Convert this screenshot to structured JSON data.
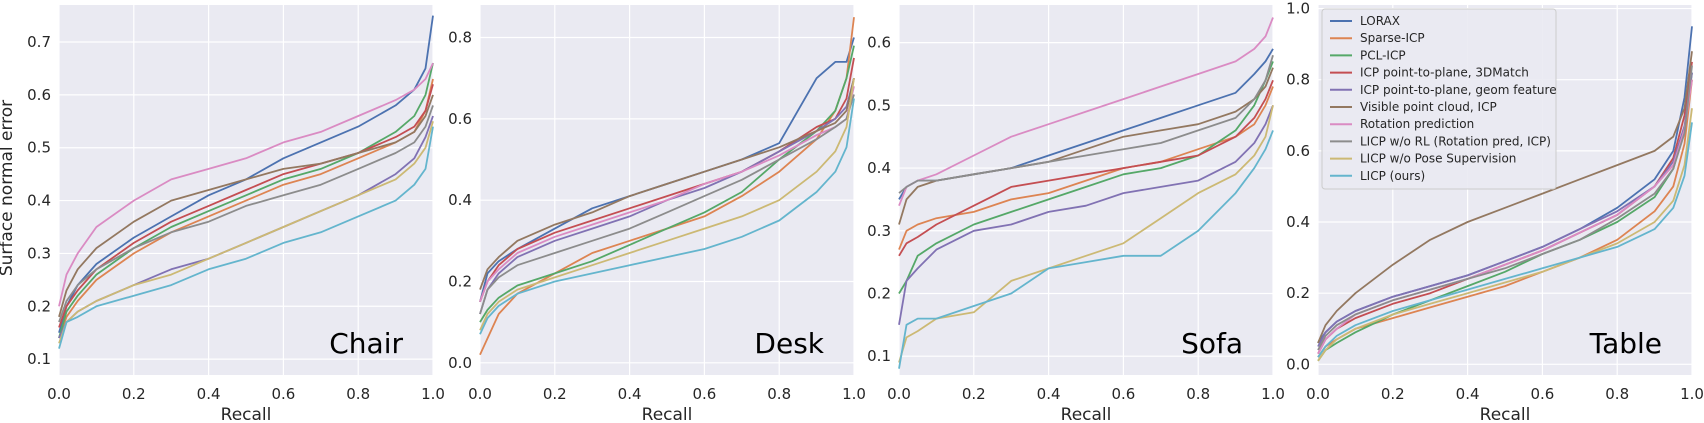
{
  "figure": {
    "ylabel": "Surface normal error",
    "xlabel": "Recall",
    "background": "#eaeaf2",
    "grid_color": "#ffffff"
  },
  "series_styles": [
    {
      "name": "LORAX",
      "color": "#4c72b0"
    },
    {
      "name": "Sparse-ICP",
      "color": "#dd8452"
    },
    {
      "name": "PCL-ICP",
      "color": "#55a868"
    },
    {
      "name": "ICP point-to-plane, 3DMatch",
      "color": "#c44e52"
    },
    {
      "name": "ICP point-to-plane, geom feature",
      "color": "#8172b3"
    },
    {
      "name": "Visible point cloud, ICP",
      "color": "#937860"
    },
    {
      "name": "Rotation prediction",
      "color": "#da8bc3"
    },
    {
      "name": "LICP w/o RL (Rotation pred, ICP)",
      "color": "#8c8c8c"
    },
    {
      "name": "LICP w/o Pose Supervision",
      "color": "#ccb974"
    },
    {
      "name": "LICP (ours)",
      "color": "#64b5cd"
    }
  ],
  "chart_data": [
    {
      "type": "line",
      "title": "Chair",
      "xlabel": "Recall",
      "ylabel": "Surface normal error",
      "xlim": [
        0.0,
        1.0
      ],
      "ylim": [
        0.07,
        0.77
      ],
      "xticks": [
        "0.0",
        "0.2",
        "0.4",
        "0.6",
        "0.8",
        "1.0"
      ],
      "yticks": [
        "0.1",
        "0.2",
        "0.3",
        "0.4",
        "0.5",
        "0.6",
        "0.7"
      ],
      "ytick_values": [
        0.1,
        0.2,
        0.3,
        0.4,
        0.5,
        0.6,
        0.7
      ],
      "x": [
        0.0,
        0.02,
        0.05,
        0.1,
        0.2,
        0.3,
        0.4,
        0.5,
        0.6,
        0.7,
        0.8,
        0.9,
        0.95,
        0.98,
        1.0
      ],
      "series": [
        {
          "name": "LORAX",
          "values": [
            0.15,
            0.2,
            0.24,
            0.28,
            0.33,
            0.37,
            0.41,
            0.44,
            0.48,
            0.51,
            0.54,
            0.58,
            0.61,
            0.65,
            0.75
          ]
        },
        {
          "name": "Sparse-ICP",
          "values": [
            0.14,
            0.18,
            0.21,
            0.25,
            0.3,
            0.34,
            0.37,
            0.4,
            0.43,
            0.45,
            0.48,
            0.51,
            0.53,
            0.57,
            0.63
          ]
        },
        {
          "name": "PCL-ICP",
          "values": [
            0.14,
            0.19,
            0.22,
            0.26,
            0.31,
            0.35,
            0.38,
            0.41,
            0.44,
            0.46,
            0.49,
            0.53,
            0.56,
            0.6,
            0.66
          ]
        },
        {
          "name": "ICP point-to-plane, 3DMatch",
          "values": [
            0.16,
            0.2,
            0.23,
            0.27,
            0.32,
            0.36,
            0.39,
            0.42,
            0.45,
            0.47,
            0.49,
            0.52,
            0.54,
            0.57,
            0.62
          ]
        },
        {
          "name": "ICP point-to-plane, geom feature",
          "values": [
            0.14,
            0.17,
            0.19,
            0.21,
            0.24,
            0.27,
            0.29,
            0.32,
            0.35,
            0.38,
            0.41,
            0.45,
            0.48,
            0.52,
            0.56
          ]
        },
        {
          "name": "Visible point cloud, ICP",
          "values": [
            0.18,
            0.23,
            0.27,
            0.31,
            0.36,
            0.4,
            0.42,
            0.44,
            0.46,
            0.47,
            0.49,
            0.51,
            0.53,
            0.56,
            0.6
          ]
        },
        {
          "name": "Rotation prediction",
          "values": [
            0.2,
            0.26,
            0.3,
            0.35,
            0.4,
            0.44,
            0.46,
            0.48,
            0.51,
            0.53,
            0.56,
            0.59,
            0.61,
            0.63,
            0.66
          ]
        },
        {
          "name": "LICP w/o RL (Rotation pred, ICP)",
          "values": [
            0.17,
            0.21,
            0.24,
            0.27,
            0.31,
            0.34,
            0.36,
            0.39,
            0.41,
            0.43,
            0.46,
            0.49,
            0.51,
            0.54,
            0.58
          ]
        },
        {
          "name": "LICP w/o Pose Supervision",
          "values": [
            0.13,
            0.17,
            0.19,
            0.21,
            0.24,
            0.26,
            0.29,
            0.32,
            0.35,
            0.38,
            0.41,
            0.44,
            0.47,
            0.5,
            0.55
          ]
        },
        {
          "name": "LICP (ours)",
          "values": [
            0.12,
            0.17,
            0.18,
            0.2,
            0.22,
            0.24,
            0.27,
            0.29,
            0.32,
            0.34,
            0.37,
            0.4,
            0.43,
            0.46,
            0.54
          ]
        }
      ]
    },
    {
      "type": "line",
      "title": "Desk",
      "xlabel": "Recall",
      "ylabel": "",
      "xlim": [
        0.0,
        1.0
      ],
      "ylim": [
        -0.03,
        0.88
      ],
      "xticks": [
        "0.0",
        "0.2",
        "0.4",
        "0.6",
        "0.8",
        "1.0"
      ],
      "yticks": [
        "0.0",
        "0.2",
        "0.4",
        "0.6",
        "0.8"
      ],
      "ytick_values": [
        0.0,
        0.2,
        0.4,
        0.6,
        0.8
      ],
      "x": [
        0.0,
        0.02,
        0.05,
        0.1,
        0.2,
        0.3,
        0.4,
        0.5,
        0.6,
        0.7,
        0.8,
        0.9,
        0.95,
        0.98,
        1.0
      ],
      "series": [
        {
          "name": "LORAX",
          "values": [
            0.15,
            0.22,
            0.25,
            0.28,
            0.33,
            0.38,
            0.41,
            0.44,
            0.47,
            0.5,
            0.54,
            0.7,
            0.74,
            0.74,
            0.8
          ]
        },
        {
          "name": "Sparse-ICP",
          "values": [
            0.02,
            0.06,
            0.12,
            0.17,
            0.22,
            0.27,
            0.3,
            0.33,
            0.36,
            0.41,
            0.47,
            0.55,
            0.62,
            0.7,
            0.85
          ]
        },
        {
          "name": "PCL-ICP",
          "values": [
            0.1,
            0.13,
            0.16,
            0.19,
            0.22,
            0.25,
            0.29,
            0.33,
            0.37,
            0.42,
            0.5,
            0.57,
            0.62,
            0.7,
            0.78
          ]
        },
        {
          "name": "ICP point-to-plane, 3DMatch",
          "values": [
            0.15,
            0.2,
            0.24,
            0.28,
            0.32,
            0.35,
            0.38,
            0.41,
            0.44,
            0.47,
            0.52,
            0.58,
            0.6,
            0.65,
            0.75
          ]
        },
        {
          "name": "ICP point-to-plane, geom feature",
          "values": [
            0.12,
            0.18,
            0.22,
            0.26,
            0.3,
            0.33,
            0.36,
            0.4,
            0.43,
            0.47,
            0.52,
            0.57,
            0.6,
            0.63,
            0.7
          ]
        },
        {
          "name": "Visible point cloud, ICP",
          "values": [
            0.18,
            0.23,
            0.26,
            0.3,
            0.34,
            0.37,
            0.41,
            0.44,
            0.47,
            0.5,
            0.53,
            0.57,
            0.59,
            0.62,
            0.7
          ]
        },
        {
          "name": "Rotation prediction",
          "values": [
            0.15,
            0.2,
            0.23,
            0.27,
            0.31,
            0.34,
            0.37,
            0.4,
            0.44,
            0.47,
            0.51,
            0.56,
            0.58,
            0.6,
            0.68
          ]
        },
        {
          "name": "LICP w/o RL (Rotation pred, ICP)",
          "values": [
            0.12,
            0.18,
            0.21,
            0.24,
            0.27,
            0.3,
            0.33,
            0.37,
            0.41,
            0.45,
            0.5,
            0.55,
            0.58,
            0.6,
            0.66
          ]
        },
        {
          "name": "LICP w/o Pose Supervision",
          "values": [
            0.08,
            0.12,
            0.15,
            0.18,
            0.21,
            0.24,
            0.27,
            0.3,
            0.33,
            0.36,
            0.4,
            0.47,
            0.52,
            0.58,
            0.7
          ]
        },
        {
          "name": "LICP (ours)",
          "values": [
            0.07,
            0.11,
            0.14,
            0.17,
            0.2,
            0.22,
            0.24,
            0.26,
            0.28,
            0.31,
            0.35,
            0.42,
            0.47,
            0.53,
            0.65
          ]
        }
      ]
    },
    {
      "type": "line",
      "title": "Sofa",
      "xlabel": "Recall",
      "ylabel": "",
      "xlim": [
        0.0,
        1.0
      ],
      "ylim": [
        0.07,
        0.66
      ],
      "xticks": [
        "0.0",
        "0.2",
        "0.4",
        "0.6",
        "0.8",
        "1.0"
      ],
      "yticks": [
        "0.1",
        "0.2",
        "0.3",
        "0.4",
        "0.5",
        "0.6"
      ],
      "ytick_values": [
        0.1,
        0.2,
        0.3,
        0.4,
        0.5,
        0.6
      ],
      "x": [
        0.0,
        0.02,
        0.05,
        0.1,
        0.2,
        0.3,
        0.4,
        0.5,
        0.6,
        0.7,
        0.8,
        0.9,
        0.95,
        0.98,
        1.0
      ],
      "series": [
        {
          "name": "LORAX",
          "values": [
            0.35,
            0.37,
            0.38,
            0.38,
            0.39,
            0.4,
            0.42,
            0.44,
            0.46,
            0.48,
            0.5,
            0.52,
            0.55,
            0.57,
            0.59
          ]
        },
        {
          "name": "Sparse-ICP",
          "values": [
            0.27,
            0.3,
            0.31,
            0.32,
            0.33,
            0.35,
            0.36,
            0.38,
            0.4,
            0.41,
            0.43,
            0.45,
            0.47,
            0.5,
            0.53
          ]
        },
        {
          "name": "PCL-ICP",
          "values": [
            0.2,
            0.22,
            0.26,
            0.28,
            0.31,
            0.33,
            0.35,
            0.37,
            0.39,
            0.4,
            0.42,
            0.46,
            0.5,
            0.54,
            0.57
          ]
        },
        {
          "name": "ICP point-to-plane, 3DMatch",
          "values": [
            0.26,
            0.28,
            0.29,
            0.31,
            0.34,
            0.37,
            0.38,
            0.39,
            0.4,
            0.41,
            0.42,
            0.45,
            0.48,
            0.51,
            0.54
          ]
        },
        {
          "name": "ICP point-to-plane, geom feature",
          "values": [
            0.15,
            0.22,
            0.24,
            0.27,
            0.3,
            0.31,
            0.33,
            0.34,
            0.36,
            0.37,
            0.38,
            0.41,
            0.44,
            0.47,
            0.5
          ]
        },
        {
          "name": "Visible point cloud, ICP",
          "values": [
            0.31,
            0.35,
            0.37,
            0.38,
            0.39,
            0.4,
            0.41,
            0.43,
            0.45,
            0.46,
            0.47,
            0.49,
            0.51,
            0.53,
            0.56
          ]
        },
        {
          "name": "Rotation prediction",
          "values": [
            0.34,
            0.37,
            0.38,
            0.39,
            0.42,
            0.45,
            0.47,
            0.49,
            0.51,
            0.53,
            0.55,
            0.57,
            0.59,
            0.61,
            0.64
          ]
        },
        {
          "name": "LICP w/o RL (Rotation pred, ICP)",
          "values": [
            0.36,
            0.37,
            0.38,
            0.38,
            0.39,
            0.4,
            0.41,
            0.42,
            0.43,
            0.44,
            0.46,
            0.48,
            0.51,
            0.54,
            0.58
          ]
        },
        {
          "name": "LICP w/o Pose Supervision",
          "values": [
            0.09,
            0.13,
            0.14,
            0.16,
            0.17,
            0.22,
            0.24,
            0.26,
            0.28,
            0.32,
            0.36,
            0.39,
            0.42,
            0.45,
            0.5
          ]
        },
        {
          "name": "LICP (ours)",
          "values": [
            0.08,
            0.15,
            0.16,
            0.16,
            0.18,
            0.2,
            0.24,
            0.25,
            0.26,
            0.26,
            0.3,
            0.36,
            0.4,
            0.43,
            0.46
          ]
        }
      ]
    },
    {
      "type": "line",
      "title": "Table",
      "xlabel": "Recall",
      "ylabel": "",
      "xlim": [
        0.0,
        1.0
      ],
      "ylim": [
        -0.03,
        1.01
      ],
      "xticks": [
        "0.0",
        "0.2",
        "0.4",
        "0.6",
        "0.8",
        "1.0"
      ],
      "yticks": [
        "0.0",
        "0.2",
        "0.4",
        "0.6",
        "0.8",
        "1.0"
      ],
      "ytick_values": [
        0.0,
        0.2,
        0.4,
        0.6,
        0.8,
        1.0
      ],
      "x": [
        0.0,
        0.02,
        0.05,
        0.1,
        0.2,
        0.3,
        0.4,
        0.5,
        0.6,
        0.7,
        0.8,
        0.9,
        0.95,
        0.98,
        1.0
      ],
      "series": [
        {
          "name": "LORAX",
          "values": [
            0.06,
            0.09,
            0.12,
            0.15,
            0.19,
            0.22,
            0.25,
            0.29,
            0.33,
            0.38,
            0.44,
            0.52,
            0.6,
            0.75,
            0.95
          ]
        },
        {
          "name": "Sparse-ICP",
          "values": [
            0.02,
            0.05,
            0.07,
            0.1,
            0.13,
            0.16,
            0.19,
            0.22,
            0.26,
            0.3,
            0.35,
            0.43,
            0.5,
            0.62,
            0.8
          ]
        },
        {
          "name": "PCL-ICP",
          "values": [
            0.01,
            0.04,
            0.06,
            0.09,
            0.14,
            0.18,
            0.22,
            0.26,
            0.31,
            0.35,
            0.4,
            0.47,
            0.55,
            0.66,
            0.82
          ]
        },
        {
          "name": "ICP point-to-plane, 3DMatch",
          "values": [
            0.03,
            0.07,
            0.1,
            0.13,
            0.17,
            0.2,
            0.24,
            0.28,
            0.32,
            0.37,
            0.42,
            0.5,
            0.58,
            0.7,
            0.85
          ]
        },
        {
          "name": "ICP point-to-plane, geom feature",
          "values": [
            0.05,
            0.09,
            0.12,
            0.15,
            0.19,
            0.22,
            0.25,
            0.29,
            0.33,
            0.38,
            0.43,
            0.5,
            0.57,
            0.67,
            0.82
          ]
        },
        {
          "name": "Visible point cloud, ICP",
          "values": [
            0.06,
            0.11,
            0.15,
            0.2,
            0.28,
            0.35,
            0.4,
            0.44,
            0.48,
            0.52,
            0.56,
            0.6,
            0.64,
            0.72,
            0.88
          ]
        },
        {
          "name": "Rotation prediction",
          "values": [
            0.03,
            0.07,
            0.1,
            0.14,
            0.18,
            0.21,
            0.24,
            0.28,
            0.32,
            0.37,
            0.42,
            0.5,
            0.56,
            0.66,
            0.8
          ]
        },
        {
          "name": "LICP w/o RL (Rotation pred, ICP)",
          "values": [
            0.04,
            0.08,
            0.11,
            0.14,
            0.18,
            0.21,
            0.24,
            0.27,
            0.31,
            0.35,
            0.41,
            0.48,
            0.55,
            0.65,
            0.84
          ]
        },
        {
          "name": "LICP w/o Pose Supervision",
          "values": [
            0.01,
            0.04,
            0.07,
            0.1,
            0.14,
            0.17,
            0.2,
            0.23,
            0.26,
            0.3,
            0.34,
            0.4,
            0.46,
            0.56,
            0.72
          ]
        },
        {
          "name": "LICP (ours)",
          "values": [
            0.02,
            0.05,
            0.08,
            0.11,
            0.15,
            0.18,
            0.21,
            0.24,
            0.27,
            0.3,
            0.33,
            0.38,
            0.44,
            0.53,
            0.68
          ]
        }
      ]
    }
  ]
}
